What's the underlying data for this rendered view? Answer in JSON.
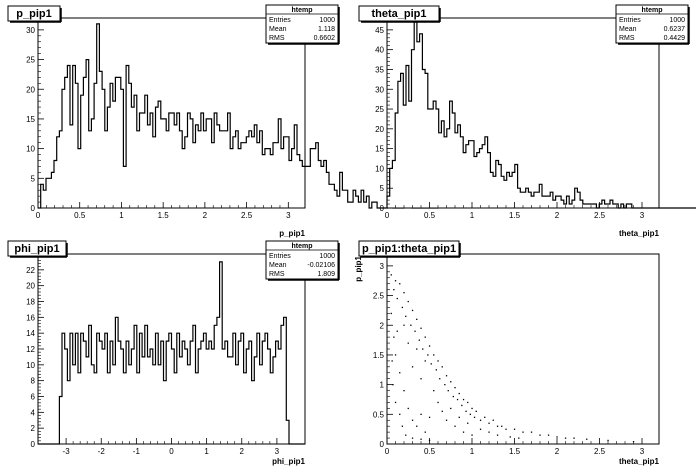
{
  "chart_data": [
    {
      "type": "histogram",
      "title": "p_pip1",
      "xlabel": "p_pip1",
      "ylabel": "",
      "xlim": [
        0,
        3.2
      ],
      "ylim": [
        0,
        32
      ],
      "xticks": [
        "0",
        "0.5",
        "1",
        "1.5",
        "2",
        "2.5",
        "3"
      ],
      "xtick_values": [
        0,
        0.5,
        1,
        1.5,
        2,
        2.5,
        3
      ],
      "yticks": [
        "0",
        "5",
        "10",
        "15",
        "20",
        "25",
        "30"
      ],
      "ytick_values": [
        0,
        5,
        10,
        15,
        20,
        25,
        30
      ],
      "bin_start": 0,
      "bin_width": 0.032,
      "values": [
        0,
        4,
        3,
        5,
        5,
        6,
        8,
        12,
        13,
        20,
        22,
        24,
        14,
        24,
        21,
        10,
        19,
        22,
        25,
        13,
        15,
        21,
        31,
        23,
        20,
        13,
        17,
        21,
        18,
        22,
        22,
        20,
        7,
        24,
        21,
        17,
        19,
        13,
        16,
        16,
        19,
        14,
        16,
        12,
        17,
        18,
        15,
        15,
        13,
        16,
        16,
        14,
        16,
        13,
        10,
        12,
        16,
        15,
        11,
        14,
        13,
        16,
        13,
        15,
        15,
        11,
        16,
        14,
        13,
        13,
        13,
        16,
        10,
        12,
        13,
        10,
        11,
        11,
        12,
        13,
        12,
        14,
        11,
        13,
        9,
        10,
        10,
        9,
        11,
        11,
        15,
        10,
        12,
        12,
        8,
        10,
        14,
        9,
        8,
        7,
        7,
        7,
        10,
        10,
        11,
        8,
        7,
        8,
        6,
        4,
        4,
        3,
        2,
        6,
        3,
        3,
        1,
        1,
        3,
        2,
        1,
        3,
        1,
        2,
        0,
        1,
        1,
        0,
        0,
        0,
        0,
        1,
        1,
        0,
        0,
        0,
        0,
        1,
        2,
        1,
        0,
        0,
        0,
        0,
        0,
        0,
        0,
        0,
        0,
        0
      ],
      "stats": {
        "header": "htemp",
        "rows": [
          {
            "label": "Entries",
            "value": "1000"
          },
          {
            "label": "Mean",
            "value": "1.118"
          },
          {
            "label": "RMS",
            "value": "0.6602"
          }
        ]
      }
    },
    {
      "type": "histogram",
      "title": "theta_pip1",
      "xlabel": "theta_pip1",
      "ylabel": "",
      "xlim": [
        0,
        3.2
      ],
      "ylim": [
        0,
        48
      ],
      "xticks": [
        "0",
        "0.5",
        "1",
        "1.5",
        "2",
        "2.5",
        "3"
      ],
      "xtick_values": [
        0,
        0.5,
        1,
        1.5,
        2,
        2.5,
        3
      ],
      "yticks": [
        "0",
        "5",
        "10",
        "15",
        "20",
        "25",
        "30",
        "35",
        "40",
        "45"
      ],
      "ytick_values": [
        0,
        5,
        10,
        15,
        20,
        25,
        30,
        35,
        40,
        45
      ],
      "bin_start": 0,
      "bin_width": 0.032,
      "values": [
        3,
        10,
        12,
        24,
        32,
        34,
        26,
        36,
        27,
        40,
        47,
        42,
        44,
        35,
        34,
        25,
        25,
        27,
        25,
        19,
        22,
        18,
        20,
        27,
        24,
        19,
        21,
        18,
        14,
        16,
        17,
        17,
        13,
        14,
        15,
        16,
        18,
        14,
        9,
        8,
        12,
        11,
        8,
        7,
        9,
        8,
        9,
        11,
        5,
        4,
        4,
        5,
        4,
        3,
        4,
        4,
        6,
        3,
        3,
        3,
        4,
        2,
        3,
        3,
        2,
        1,
        3,
        1,
        2,
        5,
        4,
        2,
        1,
        1,
        1,
        1,
        1,
        0,
        1,
        2,
        1,
        1,
        2,
        1,
        1,
        0,
        1,
        0,
        1,
        1,
        0,
        0,
        0,
        0,
        0,
        0,
        0,
        0,
        0,
        0,
        0,
        0,
        0,
        0,
        0,
        0,
        0,
        0,
        0,
        0,
        0,
        0,
        0,
        0,
        0,
        0,
        0,
        0,
        0,
        0,
        0,
        0,
        0,
        0,
        0,
        0,
        0,
        0,
        0,
        0,
        0,
        0,
        0,
        0,
        0,
        0,
        0,
        0,
        0,
        0,
        0,
        0,
        0,
        0,
        0,
        0,
        0,
        0,
        0,
        0
      ],
      "stats": {
        "header": "htemp",
        "rows": [
          {
            "label": "Entries",
            "value": "1000"
          },
          {
            "label": "Mean",
            "value": "0.6237"
          },
          {
            "label": "RMS",
            "value": "0.4429"
          }
        ]
      }
    },
    {
      "type": "histogram",
      "title": "phi_pip1",
      "xlabel": "phi_pip1",
      "ylabel": "",
      "xlim": [
        -3.8,
        3.8
      ],
      "ylim": [
        0,
        24
      ],
      "xticks": [
        "-3",
        "-2",
        "-1",
        "0",
        "1",
        "2",
        "3"
      ],
      "xtick_values": [
        -3,
        -2,
        -1,
        0,
        1,
        2,
        3
      ],
      "yticks": [
        "0",
        "2",
        "4",
        "6",
        "8",
        "10",
        "12",
        "14",
        "16",
        "18",
        "20",
        "22",
        "24"
      ],
      "ytick_values": [
        0,
        2,
        4,
        6,
        8,
        10,
        12,
        14,
        16,
        18,
        20,
        22,
        24
      ],
      "bin_start": -3.8,
      "bin_width": 0.076,
      "values": [
        0,
        0,
        0,
        0,
        0,
        0,
        0,
        0,
        6,
        14,
        12,
        8,
        14,
        10,
        14,
        9,
        14,
        13,
        11,
        15,
        10,
        9,
        14,
        13,
        12,
        14,
        9,
        13,
        10,
        16,
        13,
        12,
        9,
        13,
        10,
        12,
        15,
        9,
        14,
        11,
        15,
        11,
        12,
        10,
        14,
        10,
        13,
        8,
        13,
        14,
        12,
        9,
        14,
        11,
        13,
        12,
        10,
        13,
        15,
        9,
        12,
        13,
        14,
        12,
        13,
        12,
        15,
        16,
        23,
        12,
        13,
        11,
        11,
        14,
        10,
        13,
        14,
        9,
        12,
        13,
        8,
        11,
        14,
        10,
        13,
        14,
        12,
        9,
        11,
        13,
        12,
        15,
        16,
        3,
        0,
        0,
        0,
        0,
        0,
        0
      ],
      "stats": {
        "header": "htemp",
        "rows": [
          {
            "label": "Entries",
            "value": "1000"
          },
          {
            "label": "Mean",
            "value": "-0.02106"
          },
          {
            "label": "RMS",
            "value": "1.809"
          }
        ]
      }
    },
    {
      "type": "scatter",
      "title": "p_pip1:theta_pip1",
      "xlabel": "theta_pip1",
      "ylabel": "p_pip1",
      "xlim": [
        0,
        3.2
      ],
      "ylim": [
        0,
        3.2
      ],
      "xticks": [
        "0",
        "0.5",
        "1",
        "1.5",
        "2",
        "2.5",
        "3"
      ],
      "xtick_values": [
        0,
        0.5,
        1,
        1.5,
        2,
        2.5,
        3
      ],
      "yticks": [
        "0",
        "0.5",
        "1",
        "1.5",
        "2",
        "2.5",
        "3"
      ],
      "ytick_values": [
        0,
        0.5,
        1,
        1.5,
        2,
        2.5,
        3
      ],
      "points": [
        [
          0.05,
          2.85
        ],
        [
          0.08,
          2.6
        ],
        [
          0.1,
          2.75
        ],
        [
          0.12,
          2.45
        ],
        [
          0.15,
          2.7
        ],
        [
          0.18,
          2.3
        ],
        [
          0.2,
          2.55
        ],
        [
          0.22,
          2.15
        ],
        [
          0.25,
          2.4
        ],
        [
          0.28,
          2.0
        ],
        [
          0.3,
          2.25
        ],
        [
          0.33,
          1.9
        ],
        [
          0.35,
          2.1
        ],
        [
          0.38,
          1.75
        ],
        [
          0.4,
          1.95
        ],
        [
          0.42,
          1.6
        ],
        [
          0.45,
          1.8
        ],
        [
          0.48,
          1.5
        ],
        [
          0.5,
          1.65
        ],
        [
          0.52,
          1.35
        ],
        [
          0.55,
          1.5
        ],
        [
          0.58,
          1.25
        ],
        [
          0.6,
          1.4
        ],
        [
          0.62,
          1.1
        ],
        [
          0.65,
          1.3
        ],
        [
          0.68,
          1.0
        ],
        [
          0.7,
          1.15
        ],
        [
          0.72,
          0.9
        ],
        [
          0.75,
          1.05
        ],
        [
          0.78,
          0.8
        ],
        [
          0.8,
          0.95
        ],
        [
          0.83,
          0.75
        ],
        [
          0.85,
          0.85
        ],
        [
          0.88,
          0.65
        ],
        [
          0.9,
          0.75
        ],
        [
          0.93,
          0.55
        ],
        [
          0.95,
          0.7
        ],
        [
          0.98,
          0.5
        ],
        [
          1.0,
          0.6
        ],
        [
          1.03,
          0.45
        ],
        [
          1.05,
          0.55
        ],
        [
          1.1,
          0.4
        ],
        [
          1.15,
          0.45
        ],
        [
          1.2,
          0.35
        ],
        [
          1.25,
          0.4
        ],
        [
          1.3,
          0.3
        ],
        [
          1.35,
          0.3
        ],
        [
          1.4,
          0.25
        ],
        [
          1.5,
          0.25
        ],
        [
          1.6,
          0.2
        ],
        [
          1.7,
          0.2
        ],
        [
          1.8,
          0.15
        ],
        [
          1.9,
          0.15
        ],
        [
          2.0,
          0.12
        ],
        [
          2.1,
          0.1
        ],
        [
          2.2,
          0.1
        ],
        [
          2.35,
          0.08
        ],
        [
          2.6,
          0.06
        ],
        [
          2.9,
          0.04
        ],
        [
          0.1,
          1.5
        ],
        [
          0.15,
          1.2
        ],
        [
          0.2,
          0.9
        ],
        [
          0.25,
          0.6
        ],
        [
          0.3,
          0.4
        ],
        [
          0.35,
          0.3
        ],
        [
          0.4,
          0.5
        ],
        [
          0.45,
          0.2
        ],
        [
          0.5,
          0.45
        ],
        [
          0.55,
          0.9
        ],
        [
          0.6,
          0.7
        ],
        [
          0.3,
          1.3
        ],
        [
          0.35,
          1.6
        ],
        [
          0.4,
          1.1
        ],
        [
          0.45,
          1.4
        ],
        [
          0.2,
          2.0
        ],
        [
          0.25,
          1.7
        ],
        [
          0.12,
          1.9
        ],
        [
          0.7,
          0.4
        ],
        [
          0.8,
          0.3
        ],
        [
          0.9,
          0.2
        ],
        [
          1.0,
          0.15
        ],
        [
          0.65,
          0.55
        ],
        [
          0.75,
          0.6
        ],
        [
          0.85,
          0.45
        ],
        [
          0.95,
          0.35
        ],
        [
          1.1,
          0.25
        ],
        [
          1.2,
          0.2
        ],
        [
          1.3,
          0.15
        ],
        [
          1.45,
          0.12
        ],
        [
          1.55,
          0.1
        ],
        [
          0.05,
          2.2
        ],
        [
          0.08,
          1.8
        ],
        [
          0.06,
          1.4
        ],
        [
          0.07,
          1.0
        ],
        [
          0.1,
          0.7
        ],
        [
          0.15,
          0.5
        ],
        [
          0.18,
          0.3
        ],
        [
          0.22,
          0.15
        ],
        [
          0.3,
          0.1
        ],
        [
          0.4,
          0.08
        ],
        [
          0.5,
          0.06
        ]
      ]
    }
  ]
}
